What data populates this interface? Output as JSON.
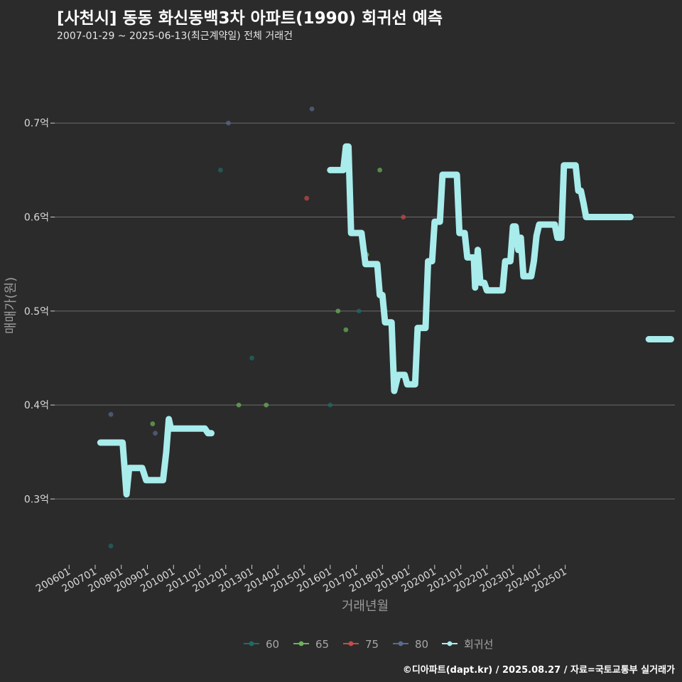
{
  "chart_data": {
    "type": "scatter",
    "title": "[사천시] 동동 화신동백3차 아파트(1990) 회귀선 예측",
    "subtitle": "2007-01-29 ~ 2025-06-13(최근계약일) 전체 거래건",
    "xlabel": "거래년월",
    "ylabel": "매매가(원)",
    "caption": "©디아파트(dapt.kr) / 2025.08.27 / 자료=국토교통부 실거래가",
    "x_ticks": [
      "200601",
      "200701",
      "200801",
      "200901",
      "201001",
      "201101",
      "201201",
      "201301",
      "201401",
      "201501",
      "201601",
      "201701",
      "201801",
      "201901",
      "202001",
      "202101",
      "202201",
      "202301",
      "202401",
      "202501"
    ],
    "y_ticks": [
      {
        "value": 0.3,
        "label": "0.3억"
      },
      {
        "value": 0.4,
        "label": "0.4억"
      },
      {
        "value": 0.5,
        "label": "0.5억"
      },
      {
        "value": 0.6,
        "label": "0.6억"
      },
      {
        "value": 0.7,
        "label": "0.7억"
      }
    ],
    "xlim": [
      2005.45,
      2029.2
    ],
    "ylim": [
      0.23,
      0.772
    ],
    "legend_position": "bottom",
    "series": [
      {
        "name": "60",
        "color": "#1f6b66",
        "points": [
          [
            2007.6,
            0.25
          ],
          [
            2011.8,
            0.65
          ],
          [
            2013.0,
            0.45
          ],
          [
            2016.0,
            0.4
          ],
          [
            2016.7,
            0.665
          ],
          [
            2017.1,
            0.5
          ]
        ]
      },
      {
        "name": "65",
        "color": "#6db35a",
        "points": [
          [
            2009.2,
            0.38
          ],
          [
            2012.5,
            0.4
          ],
          [
            2013.55,
            0.4
          ],
          [
            2016.3,
            0.5
          ],
          [
            2016.6,
            0.48
          ],
          [
            2017.9,
            0.65
          ],
          [
            2018.1,
            0.5
          ],
          [
            2017.4,
            0.56
          ]
        ]
      },
      {
        "name": "75",
        "color": "#c94a4a",
        "points": [
          [
            2015.1,
            0.62
          ],
          [
            2018.8,
            0.6
          ]
        ]
      },
      {
        "name": "80",
        "color": "#5a6b8f",
        "points": [
          [
            2007.6,
            0.39
          ],
          [
            2009.3,
            0.37
          ],
          [
            2012.1,
            0.7
          ],
          [
            2015.3,
            0.715
          ]
        ]
      }
    ],
    "regression": {
      "name": "회귀선",
      "color": "#a8ecec",
      "segments": [
        [
          [
            2007.2,
            0.36
          ],
          [
            2008.05,
            0.36
          ],
          [
            2008.2,
            0.305
          ],
          [
            2008.3,
            0.333
          ],
          [
            2008.8,
            0.333
          ],
          [
            2008.95,
            0.32
          ],
          [
            2009.6,
            0.32
          ],
          [
            2009.72,
            0.35
          ],
          [
            2009.82,
            0.385
          ],
          [
            2009.9,
            0.375
          ],
          [
            2011.2,
            0.375
          ],
          [
            2011.32,
            0.37
          ],
          [
            2011.45,
            0.37
          ]
        ],
        [
          [
            2016.0,
            0.65
          ],
          [
            2016.5,
            0.65
          ],
          [
            2016.6,
            0.675
          ],
          [
            2016.7,
            0.675
          ],
          [
            2016.8,
            0.583
          ],
          [
            2017.2,
            0.583
          ],
          [
            2017.35,
            0.55
          ],
          [
            2017.8,
            0.55
          ],
          [
            2017.9,
            0.517
          ],
          [
            2018.0,
            0.517
          ],
          [
            2018.1,
            0.488
          ],
          [
            2018.35,
            0.488
          ],
          [
            2018.45,
            0.415
          ],
          [
            2018.6,
            0.432
          ],
          [
            2018.85,
            0.432
          ],
          [
            2018.95,
            0.422
          ],
          [
            2019.25,
            0.422
          ],
          [
            2019.35,
            0.482
          ],
          [
            2019.65,
            0.482
          ],
          [
            2019.75,
            0.553
          ],
          [
            2019.9,
            0.553
          ],
          [
            2020.0,
            0.595
          ],
          [
            2020.2,
            0.595
          ],
          [
            2020.3,
            0.645
          ],
          [
            2020.85,
            0.645
          ],
          [
            2020.95,
            0.583
          ],
          [
            2021.15,
            0.583
          ],
          [
            2021.25,
            0.557
          ],
          [
            2021.5,
            0.557
          ],
          [
            2021.55,
            0.525
          ],
          [
            2021.65,
            0.565
          ],
          [
            2021.75,
            0.53
          ],
          [
            2021.9,
            0.53
          ],
          [
            2022.0,
            0.522
          ],
          [
            2022.6,
            0.522
          ],
          [
            2022.7,
            0.553
          ],
          [
            2022.9,
            0.553
          ],
          [
            2023.0,
            0.59
          ],
          [
            2023.1,
            0.59
          ],
          [
            2023.2,
            0.565
          ],
          [
            2023.3,
            0.578
          ],
          [
            2023.4,
            0.537
          ],
          [
            2023.7,
            0.537
          ],
          [
            2023.8,
            0.553
          ],
          [
            2023.9,
            0.58
          ],
          [
            2024.0,
            0.592
          ],
          [
            2024.6,
            0.592
          ],
          [
            2024.7,
            0.578
          ],
          [
            2024.85,
            0.578
          ],
          [
            2024.95,
            0.655
          ],
          [
            2025.4,
            0.655
          ],
          [
            2025.5,
            0.628
          ],
          [
            2025.6,
            0.628
          ],
          [
            2025.7,
            0.615
          ],
          [
            2025.8,
            0.6
          ],
          [
            2026.05,
            0.6
          ],
          [
            2026.4,
            0.6
          ],
          [
            2026.9,
            0.6
          ],
          [
            2027.5,
            0.6
          ]
        ],
        [
          [
            2028.2,
            0.47
          ],
          [
            2029.05,
            0.47
          ]
        ]
      ]
    }
  },
  "legend": [
    {
      "label": "60",
      "color": "#1f6b66"
    },
    {
      "label": "65",
      "color": "#6db35a"
    },
    {
      "label": "75",
      "color": "#c94a4a"
    },
    {
      "label": "80",
      "color": "#5a6b8f"
    },
    {
      "label": "회귀선",
      "color": "#a8ecec"
    }
  ]
}
